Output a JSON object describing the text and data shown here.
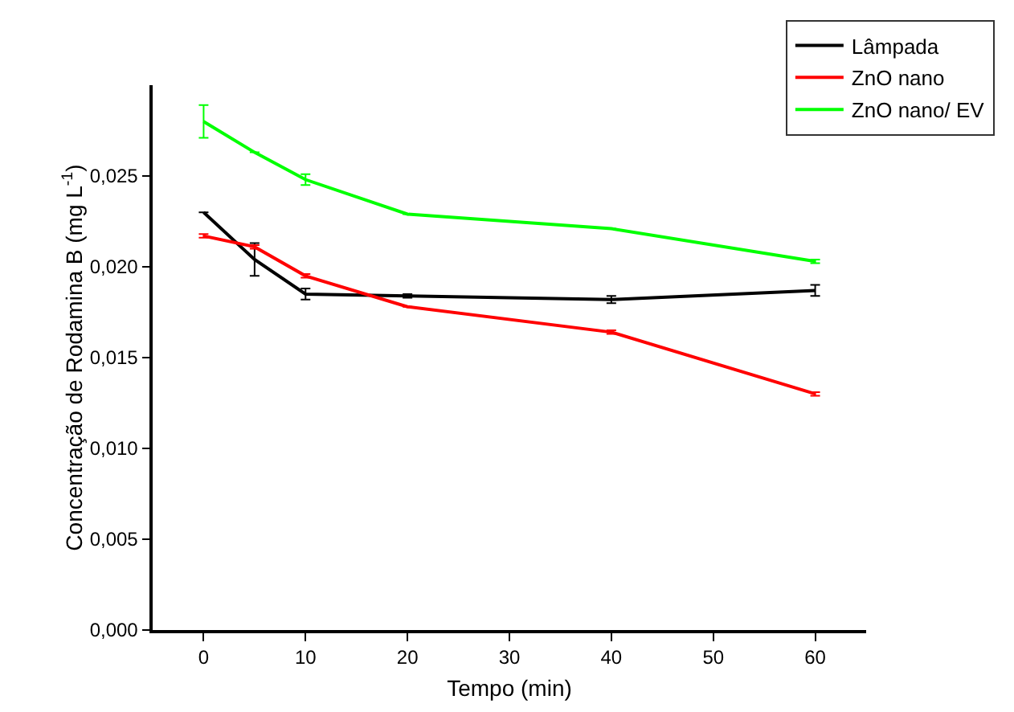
{
  "chart_data": {
    "type": "line",
    "xlabel": "Tempo (min)",
    "ylabel": "Concentração de Rodamina B (mg L$^{-1}$)",
    "x": [
      0,
      5,
      10,
      20,
      40,
      60
    ],
    "series": [
      {
        "name": "Lâmpada",
        "color": "#000000",
        "values": [
          0.023,
          0.0204,
          0.0185,
          0.0184,
          0.0182,
          0.0187
        ],
        "errors": [
          null,
          0.0009,
          0.0003,
          0.0001,
          0.0002,
          0.0003
        ]
      },
      {
        "name": "ZnO nano",
        "color": "#ff0000",
        "values": [
          0.0217,
          0.0211,
          0.0195,
          0.0178,
          0.0164,
          0.013
        ],
        "errors": [
          0.0001,
          0.0001,
          0.0001,
          null,
          0.0001,
          0.0001
        ]
      },
      {
        "name": "ZnO nano/ EV",
        "color": "#00ff00",
        "values": [
          0.028,
          0.0263,
          0.0248,
          0.0229,
          0.0221,
          0.0203
        ],
        "errors": [
          0.0009,
          null,
          0.0003,
          null,
          null,
          0.0001
        ]
      }
    ],
    "xlim": [
      -5,
      65
    ],
    "xticks": [
      0,
      10,
      20,
      30,
      40,
      50,
      60
    ],
    "ylim": [
      0,
      0.03
    ],
    "yticks": [
      {
        "value": 0,
        "label": "0,000"
      },
      {
        "value": 0.005,
        "label": "0,005"
      },
      {
        "value": 0.01,
        "label": "0,010"
      },
      {
        "value": 0.015,
        "label": "0,015"
      },
      {
        "value": 0.02,
        "label": "0,020"
      },
      {
        "value": 0.025,
        "label": "0,025"
      }
    ],
    "grid": false,
    "legend": "top right",
    "line_style": "solid"
  }
}
